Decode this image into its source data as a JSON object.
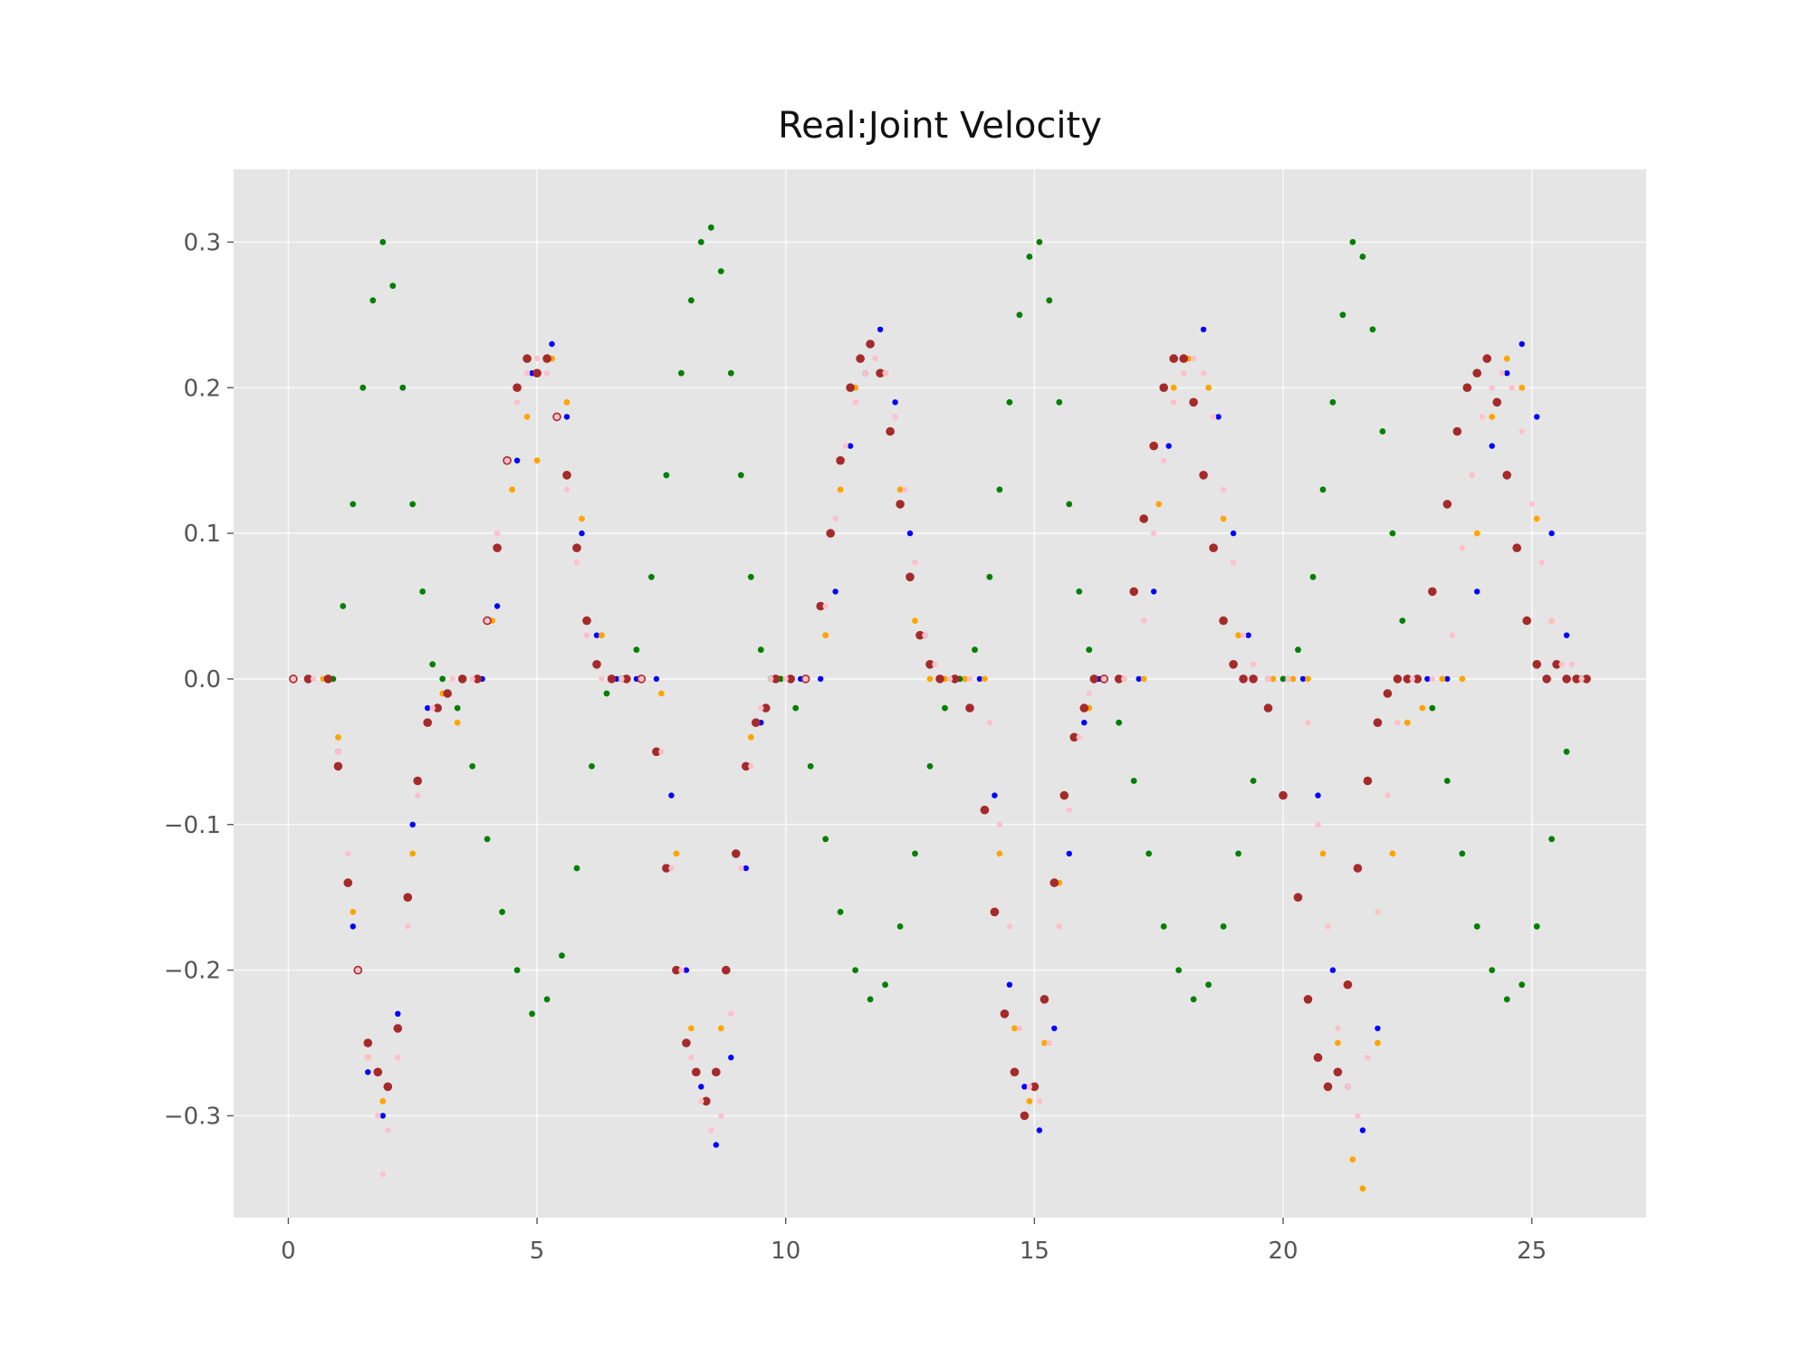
{
  "chart_data": {
    "type": "scatter",
    "title": "Real:Joint Velocity",
    "xlabel": "",
    "ylabel": "",
    "xlim": [
      -1.1,
      27.3
    ],
    "ylim": [
      -0.37,
      0.35
    ],
    "xticks": [
      0,
      5,
      10,
      15,
      20,
      25
    ],
    "xtick_labels": [
      "0",
      "5",
      "10",
      "15",
      "20",
      "25"
    ],
    "yticks": [
      -0.3,
      -0.2,
      -0.1,
      0.0,
      0.1,
      0.2,
      0.3
    ],
    "ytick_labels": [
      "−0.3",
      "−0.2",
      "−0.1",
      "0.0",
      "0.1",
      "0.2",
      "0.3"
    ],
    "grid": true,
    "plot_background": "#e5e5e5",
    "series": [
      {
        "color": "#0000ff",
        "marker_size": 3.2,
        "x": [
          0.1,
          0.8,
          1.0,
          1.3,
          1.6,
          1.9,
          2.2,
          2.5,
          2.8,
          3.1,
          3.5,
          3.9,
          4.2,
          4.6,
          4.9,
          5.3,
          5.6,
          5.9,
          6.2,
          6.6,
          7.0,
          7.4,
          7.7,
          8.0,
          8.3,
          8.6,
          8.9,
          9.2,
          9.5,
          9.8,
          10.3,
          10.7,
          11.0,
          11.3,
          11.6,
          11.9,
          12.2,
          12.5,
          12.8,
          13.1,
          13.5,
          13.9,
          14.2,
          14.5,
          14.8,
          15.1,
          15.4,
          15.7,
          16.0,
          16.3,
          16.7,
          17.1,
          17.4,
          17.7,
          18.0,
          18.4,
          18.7,
          19.0,
          19.3,
          19.7,
          20.1,
          20.4,
          20.7,
          21.0,
          21.3,
          21.6,
          21.9,
          22.2,
          22.5,
          22.9,
          23.3,
          23.6,
          23.9,
          24.2,
          24.5,
          24.8,
          25.1,
          25.4,
          25.7,
          26.0
        ],
        "y": [
          0.0,
          0.0,
          -0.05,
          -0.17,
          -0.27,
          -0.3,
          -0.23,
          -0.1,
          -0.02,
          0.0,
          0.0,
          0.0,
          0.05,
          0.15,
          0.21,
          0.23,
          0.18,
          0.1,
          0.03,
          0.0,
          0.0,
          0.0,
          -0.08,
          -0.2,
          -0.28,
          -0.32,
          -0.26,
          -0.13,
          -0.03,
          0.0,
          0.0,
          0.0,
          0.06,
          0.16,
          0.21,
          0.24,
          0.19,
          0.1,
          0.03,
          0.0,
          0.0,
          0.0,
          -0.08,
          -0.21,
          -0.28,
          -0.31,
          -0.24,
          -0.12,
          -0.03,
          0.0,
          0.0,
          0.0,
          0.06,
          0.16,
          0.22,
          0.24,
          0.18,
          0.1,
          0.03,
          0.0,
          0.0,
          0.0,
          -0.08,
          -0.2,
          -0.28,
          -0.31,
          -0.24,
          -0.12,
          -0.03,
          0.0,
          0.0,
          0.0,
          0.06,
          0.16,
          0.21,
          0.23,
          0.18,
          0.1,
          0.03,
          0.0
        ]
      },
      {
        "color": "#ffa500",
        "marker_size": 3.4,
        "x": [
          0.1,
          0.7,
          1.0,
          1.3,
          1.6,
          1.9,
          2.2,
          2.5,
          2.8,
          3.1,
          3.4,
          3.8,
          4.1,
          4.5,
          4.8,
          5.0,
          5.3,
          5.6,
          5.9,
          6.3,
          6.7,
          7.1,
          7.5,
          7.8,
          8.1,
          8.4,
          8.7,
          9.0,
          9.3,
          9.6,
          9.9,
          10.4,
          10.8,
          11.1,
          11.4,
          11.7,
          12.0,
          12.3,
          12.6,
          12.9,
          13.2,
          13.6,
          14.0,
          14.3,
          14.6,
          14.9,
          15.2,
          15.5,
          15.8,
          16.1,
          16.4,
          16.8,
          17.2,
          17.5,
          17.8,
          18.1,
          18.5,
          18.8,
          19.1,
          19.4,
          19.8,
          20.2,
          20.5,
          20.8,
          21.1,
          21.4,
          21.6,
          21.9,
          22.2,
          22.5,
          22.8,
          23.2,
          23.6,
          23.9,
          24.2,
          24.5,
          24.8,
          25.1,
          25.4,
          25.7,
          26.0
        ],
        "y": [
          0.0,
          0.0,
          -0.04,
          -0.16,
          -0.26,
          -0.29,
          -0.24,
          -0.12,
          -0.03,
          -0.01,
          -0.03,
          0.0,
          0.04,
          0.13,
          0.18,
          0.15,
          0.22,
          0.19,
          0.11,
          0.03,
          0.0,
          0.0,
          -0.01,
          -0.12,
          -0.24,
          -0.29,
          -0.24,
          -0.12,
          -0.04,
          -0.02,
          0.0,
          0.0,
          0.03,
          0.13,
          0.2,
          0.23,
          0.21,
          0.13,
          0.04,
          0.0,
          0.0,
          0.0,
          0.0,
          -0.12,
          -0.24,
          -0.29,
          -0.25,
          -0.14,
          -0.04,
          -0.02,
          0.0,
          0.0,
          0.0,
          0.12,
          0.2,
          0.22,
          0.2,
          0.11,
          0.03,
          0.0,
          0.0,
          0.0,
          0.0,
          -0.12,
          -0.25,
          -0.33,
          -0.35,
          -0.25,
          -0.12,
          -0.03,
          -0.02,
          0.0,
          0.0,
          0.1,
          0.18,
          0.22,
          0.2,
          0.11,
          0.04,
          0.0,
          0.0
        ]
      },
      {
        "color": "#008000",
        "marker_size": 3.4,
        "x": [
          0.9,
          1.1,
          1.3,
          1.5,
          1.7,
          1.9,
          2.1,
          2.3,
          2.5,
          2.7,
          2.9,
          3.1,
          3.4,
          3.7,
          4.0,
          4.3,
          4.6,
          4.9,
          5.2,
          5.5,
          5.8,
          6.1,
          6.4,
          6.7,
          7.0,
          7.3,
          7.6,
          7.9,
          8.1,
          8.3,
          8.5,
          8.7,
          8.9,
          9.1,
          9.3,
          9.5,
          9.7,
          9.9,
          10.2,
          10.5,
          10.8,
          11.1,
          11.4,
          11.7,
          12.0,
          12.3,
          12.6,
          12.9,
          13.2,
          13.5,
          13.8,
          14.1,
          14.3,
          14.5,
          14.7,
          14.9,
          15.1,
          15.3,
          15.5,
          15.7,
          15.9,
          16.1,
          16.4,
          16.7,
          17.0,
          17.3,
          17.6,
          17.9,
          18.2,
          18.5,
          18.8,
          19.1,
          19.4,
          19.7,
          20.0,
          20.3,
          20.6,
          20.8,
          21.0,
          21.2,
          21.4,
          21.6,
          21.8,
          22.0,
          22.2,
          22.4,
          22.7,
          23.0,
          23.3,
          23.6,
          23.9,
          24.2,
          24.5,
          24.8,
          25.1,
          25.4,
          25.7,
          26.0
        ],
        "y": [
          0.0,
          0.05,
          0.12,
          0.2,
          0.26,
          0.3,
          0.27,
          0.2,
          0.12,
          0.06,
          0.01,
          0.0,
          -0.02,
          -0.06,
          -0.11,
          -0.16,
          -0.2,
          -0.23,
          -0.22,
          -0.19,
          -0.13,
          -0.06,
          -0.01,
          0.0,
          0.02,
          0.07,
          0.14,
          0.21,
          0.26,
          0.3,
          0.31,
          0.28,
          0.21,
          0.14,
          0.07,
          0.02,
          0.0,
          0.0,
          -0.02,
          -0.06,
          -0.11,
          -0.16,
          -0.2,
          -0.22,
          -0.21,
          -0.17,
          -0.12,
          -0.06,
          -0.02,
          0.0,
          0.02,
          0.07,
          0.13,
          0.19,
          0.25,
          0.29,
          0.3,
          0.26,
          0.19,
          0.12,
          0.06,
          0.02,
          0.0,
          -0.03,
          -0.07,
          -0.12,
          -0.17,
          -0.2,
          -0.22,
          -0.21,
          -0.17,
          -0.12,
          -0.07,
          -0.02,
          0.0,
          0.02,
          0.07,
          0.13,
          0.19,
          0.25,
          0.3,
          0.29,
          0.24,
          0.17,
          0.1,
          0.04,
          0.0,
          -0.02,
          -0.07,
          -0.12,
          -0.17,
          -0.2,
          -0.22,
          -0.21,
          -0.17,
          -0.11,
          -0.05,
          0.0
        ]
      },
      {
        "color": "#a52a2a",
        "marker_size": 4.8,
        "x": [
          0.1,
          0.4,
          0.8,
          1.0,
          1.2,
          1.4,
          1.6,
          1.8,
          2.0,
          2.2,
          2.4,
          2.6,
          2.8,
          3.0,
          3.2,
          3.5,
          3.8,
          4.0,
          4.2,
          4.4,
          4.6,
          4.8,
          5.0,
          5.2,
          5.4,
          5.6,
          5.8,
          6.0,
          6.2,
          6.5,
          6.8,
          7.1,
          7.4,
          7.6,
          7.8,
          8.0,
          8.2,
          8.4,
          8.6,
          8.8,
          9.0,
          9.2,
          9.4,
          9.6,
          9.8,
          10.1,
          10.4,
          10.7,
          10.9,
          11.1,
          11.3,
          11.5,
          11.7,
          11.9,
          12.1,
          12.3,
          12.5,
          12.7,
          12.9,
          13.1,
          13.4,
          13.7,
          14.0,
          14.2,
          14.4,
          14.6,
          14.8,
          15.0,
          15.2,
          15.4,
          15.6,
          15.8,
          16.0,
          16.2,
          16.4,
          16.7,
          17.0,
          17.2,
          17.4,
          17.6,
          17.8,
          18.0,
          18.2,
          18.4,
          18.6,
          18.8,
          19.0,
          19.2,
          19.4,
          19.7,
          20.0,
          20.3,
          20.5,
          20.7,
          20.9,
          21.1,
          21.3,
          21.5,
          21.7,
          21.9,
          22.1,
          22.3,
          22.5,
          22.7,
          23.0,
          23.3,
          23.5,
          23.7,
          23.9,
          24.1,
          24.3,
          24.5,
          24.7,
          24.9,
          25.1,
          25.3,
          25.5,
          25.7,
          25.9,
          26.1
        ],
        "y": [
          0.0,
          0.0,
          0.0,
          -0.06,
          -0.14,
          -0.2,
          -0.25,
          -0.27,
          -0.28,
          -0.24,
          -0.15,
          -0.07,
          -0.03,
          -0.02,
          -0.01,
          0.0,
          0.0,
          0.04,
          0.09,
          0.15,
          0.2,
          0.22,
          0.21,
          0.22,
          0.18,
          0.14,
          0.09,
          0.04,
          0.01,
          0.0,
          0.0,
          0.0,
          -0.05,
          -0.13,
          -0.2,
          -0.25,
          -0.27,
          -0.29,
          -0.27,
          -0.2,
          -0.12,
          -0.06,
          -0.03,
          -0.02,
          0.0,
          0.0,
          0.0,
          0.05,
          0.1,
          0.15,
          0.2,
          0.22,
          0.23,
          0.21,
          0.17,
          0.12,
          0.07,
          0.03,
          0.01,
          0.0,
          0.0,
          -0.02,
          -0.09,
          -0.16,
          -0.23,
          -0.27,
          -0.3,
          -0.28,
          -0.22,
          -0.14,
          -0.08,
          -0.04,
          -0.02,
          0.0,
          0.0,
          0.0,
          0.06,
          0.11,
          0.16,
          0.2,
          0.22,
          0.22,
          0.19,
          0.14,
          0.09,
          0.04,
          0.01,
          0.0,
          0.0,
          -0.02,
          -0.08,
          -0.15,
          -0.22,
          -0.26,
          -0.28,
          -0.27,
          -0.21,
          -0.13,
          -0.07,
          -0.03,
          -0.01,
          0.0,
          0.0,
          0.0,
          0.06,
          0.12,
          0.17,
          0.2,
          0.21,
          0.22,
          0.19,
          0.14,
          0.09,
          0.04,
          0.01,
          0.0,
          0.01,
          0.0,
          0.0,
          0.0
        ]
      },
      {
        "color": "#ffc0cb",
        "marker_size": 3.2,
        "x": [
          0.1,
          0.5,
          1.0,
          1.2,
          1.4,
          1.6,
          1.8,
          1.9,
          2.0,
          2.2,
          2.4,
          2.6,
          2.9,
          3.3,
          3.7,
          4.0,
          4.2,
          4.4,
          4.6,
          4.8,
          5.0,
          5.2,
          5.4,
          5.6,
          5.8,
          6.0,
          6.3,
          6.7,
          7.1,
          7.5,
          7.7,
          7.9,
          8.1,
          8.3,
          8.5,
          8.7,
          8.9,
          9.1,
          9.3,
          9.5,
          9.7,
          10.0,
          10.4,
          10.8,
          11.0,
          11.2,
          11.4,
          11.6,
          11.8,
          12.0,
          12.2,
          12.4,
          12.6,
          12.8,
          13.0,
          13.3,
          13.7,
          14.1,
          14.3,
          14.5,
          14.7,
          14.9,
          15.1,
          15.3,
          15.5,
          15.7,
          15.9,
          16.1,
          16.4,
          16.8,
          17.2,
          17.4,
          17.6,
          17.8,
          18.0,
          18.2,
          18.4,
          18.6,
          18.8,
          19.0,
          19.2,
          19.4,
          19.7,
          20.1,
          20.5,
          20.7,
          20.9,
          21.1,
          21.3,
          21.5,
          21.7,
          21.9,
          22.1,
          22.3,
          22.6,
          23.0,
          23.4,
          23.6,
          23.8,
          24.0,
          24.2,
          24.4,
          24.6,
          24.8,
          25.0,
          25.2,
          25.4,
          25.6,
          25.8,
          26.0
        ],
        "y": [
          0.0,
          0.0,
          -0.05,
          -0.12,
          -0.2,
          -0.26,
          -0.3,
          -0.34,
          -0.31,
          -0.26,
          -0.17,
          -0.08,
          -0.02,
          0.0,
          0.0,
          0.04,
          0.1,
          0.15,
          0.19,
          0.21,
          0.22,
          0.21,
          0.18,
          0.13,
          0.08,
          0.03,
          0.0,
          0.0,
          0.0,
          -0.05,
          -0.13,
          -0.2,
          -0.26,
          -0.29,
          -0.31,
          -0.3,
          -0.23,
          -0.13,
          -0.06,
          -0.02,
          0.0,
          0.0,
          0.0,
          0.05,
          0.11,
          0.16,
          0.19,
          0.21,
          0.22,
          0.21,
          0.18,
          0.13,
          0.08,
          0.03,
          0.01,
          0.0,
          0.0,
          -0.03,
          -0.1,
          -0.17,
          -0.24,
          -0.28,
          -0.29,
          -0.25,
          -0.17,
          -0.09,
          -0.04,
          -0.01,
          0.0,
          0.0,
          0.04,
          0.1,
          0.15,
          0.19,
          0.21,
          0.22,
          0.21,
          0.18,
          0.13,
          0.08,
          0.03,
          0.01,
          0.0,
          0.0,
          -0.03,
          -0.1,
          -0.17,
          -0.24,
          -0.28,
          -0.3,
          -0.26,
          -0.16,
          -0.08,
          -0.03,
          0.0,
          0.0,
          0.03,
          0.09,
          0.14,
          0.18,
          0.2,
          0.21,
          0.2,
          0.17,
          0.12,
          0.08,
          0.04,
          0.01,
          0.01,
          0.0
        ]
      }
    ]
  }
}
